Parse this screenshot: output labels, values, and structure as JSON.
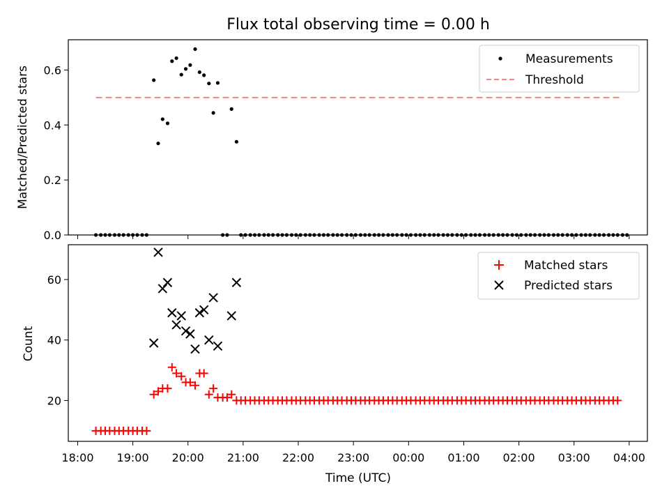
{
  "title": "Flux total observing time = 0.00 h",
  "xlabel": "Time (UTC)",
  "chart_data": [
    {
      "type": "scatter",
      "ylabel": "Matched/Predicted stars",
      "ylim": [
        0,
        0.71
      ],
      "yticks": [
        0.0,
        0.2,
        0.4,
        0.6
      ],
      "ytick_labels": [
        "0.0",
        "0.2",
        "0.4",
        "0.6"
      ],
      "x_unit": "hours since 18:00 UTC",
      "xlim": [
        17.83,
        28.33
      ],
      "legend_position": "top-right",
      "series": [
        {
          "name": "Measurements",
          "marker": "dot",
          "color": "#000000",
          "points": [
            [
              18.33,
              0
            ],
            [
              18.42,
              0
            ],
            [
              18.5,
              0
            ],
            [
              18.58,
              0
            ],
            [
              18.67,
              0
            ],
            [
              18.75,
              0
            ],
            [
              18.83,
              0
            ],
            [
              18.92,
              0
            ],
            [
              19.0,
              0
            ],
            [
              19.08,
              0
            ],
            [
              19.17,
              0
            ],
            [
              19.25,
              0
            ],
            [
              19.38,
              0.563
            ],
            [
              19.46,
              0.333
            ],
            [
              19.54,
              0.421
            ],
            [
              19.63,
              0.406
            ],
            [
              19.71,
              0.632
            ],
            [
              19.79,
              0.643
            ],
            [
              19.88,
              0.583
            ],
            [
              19.96,
              0.604
            ],
            [
              20.04,
              0.618
            ],
            [
              20.13,
              0.676
            ],
            [
              20.21,
              0.592
            ],
            [
              20.29,
              0.581
            ],
            [
              20.38,
              0.551
            ],
            [
              20.46,
              0.444
            ],
            [
              20.54,
              0.553
            ],
            [
              20.63,
              0
            ],
            [
              20.71,
              0
            ],
            [
              20.79,
              0.458
            ],
            [
              20.88,
              0.339
            ],
            [
              20.96,
              0
            ],
            [
              21.04,
              0
            ],
            [
              21.13,
              0
            ],
            [
              21.21,
              0
            ],
            [
              21.29,
              0
            ],
            [
              21.38,
              0
            ],
            [
              21.46,
              0
            ],
            [
              21.54,
              0
            ],
            [
              21.63,
              0
            ],
            [
              21.71,
              0
            ],
            [
              21.79,
              0
            ],
            [
              21.88,
              0
            ],
            [
              21.96,
              0
            ],
            [
              22.04,
              0
            ],
            [
              22.13,
              0
            ],
            [
              22.21,
              0
            ],
            [
              22.29,
              0
            ],
            [
              22.38,
              0
            ],
            [
              22.46,
              0
            ],
            [
              22.54,
              0
            ],
            [
              22.63,
              0
            ],
            [
              22.71,
              0
            ],
            [
              22.79,
              0
            ],
            [
              22.88,
              0
            ],
            [
              22.96,
              0
            ],
            [
              23.04,
              0
            ],
            [
              23.13,
              0
            ],
            [
              23.21,
              0
            ],
            [
              23.29,
              0
            ],
            [
              23.38,
              0
            ],
            [
              23.46,
              0
            ],
            [
              23.54,
              0
            ],
            [
              23.63,
              0
            ],
            [
              23.71,
              0
            ],
            [
              23.79,
              0
            ],
            [
              23.88,
              0
            ],
            [
              23.96,
              0
            ],
            [
              24.04,
              0
            ],
            [
              24.13,
              0
            ],
            [
              24.21,
              0
            ],
            [
              24.29,
              0
            ],
            [
              24.38,
              0
            ],
            [
              24.46,
              0
            ],
            [
              24.54,
              0
            ],
            [
              24.63,
              0
            ],
            [
              24.71,
              0
            ],
            [
              24.79,
              0
            ],
            [
              24.88,
              0
            ],
            [
              24.96,
              0
            ],
            [
              25.04,
              0
            ],
            [
              25.13,
              0
            ],
            [
              25.21,
              0
            ],
            [
              25.29,
              0
            ],
            [
              25.38,
              0
            ],
            [
              25.46,
              0
            ],
            [
              25.54,
              0
            ],
            [
              25.63,
              0
            ],
            [
              25.71,
              0
            ],
            [
              25.79,
              0
            ],
            [
              25.88,
              0
            ],
            [
              25.96,
              0
            ],
            [
              26.04,
              0
            ],
            [
              26.13,
              0
            ],
            [
              26.21,
              0
            ],
            [
              26.29,
              0
            ],
            [
              26.38,
              0
            ],
            [
              26.46,
              0
            ],
            [
              26.54,
              0
            ],
            [
              26.63,
              0
            ],
            [
              26.71,
              0
            ],
            [
              26.79,
              0
            ],
            [
              26.88,
              0
            ],
            [
              26.96,
              0
            ],
            [
              27.04,
              0
            ],
            [
              27.13,
              0
            ],
            [
              27.21,
              0
            ],
            [
              27.29,
              0
            ],
            [
              27.38,
              0
            ],
            [
              27.46,
              0
            ],
            [
              27.54,
              0
            ],
            [
              27.63,
              0
            ],
            [
              27.71,
              0
            ],
            [
              27.79,
              0
            ],
            [
              27.88,
              0
            ],
            [
              27.96,
              0
            ]
          ]
        },
        {
          "name": "Threshold",
          "marker": "dashed-line",
          "color": "#ff8080",
          "points": [
            [
              18.33,
              0.5
            ],
            [
              27.83,
              0.5
            ]
          ]
        }
      ]
    },
    {
      "type": "scatter",
      "ylabel": "Count",
      "ylim": [
        6.5,
        71.5
      ],
      "yticks": [
        20,
        40,
        60
      ],
      "ytick_labels": [
        "20",
        "40",
        "60"
      ],
      "x_unit": "hours since 18:00 UTC",
      "xlim": [
        17.83,
        28.33
      ],
      "xticks": [
        18,
        19,
        20,
        21,
        22,
        23,
        24,
        25,
        26,
        27,
        28
      ],
      "xtick_labels": [
        "18:00",
        "19:00",
        "20:00",
        "21:00",
        "22:00",
        "23:00",
        "00:00",
        "01:00",
        "02:00",
        "03:00",
        "04:00"
      ],
      "legend_position": "top-right",
      "series": [
        {
          "name": "Matched stars",
          "marker": "plus",
          "color": "#ff0000",
          "points": [
            [
              18.33,
              10
            ],
            [
              18.42,
              10
            ],
            [
              18.5,
              10
            ],
            [
              18.58,
              10
            ],
            [
              18.67,
              10
            ],
            [
              18.75,
              10
            ],
            [
              18.83,
              10
            ],
            [
              18.92,
              10
            ],
            [
              19.0,
              10
            ],
            [
              19.08,
              10
            ],
            [
              19.17,
              10
            ],
            [
              19.25,
              10
            ],
            [
              19.38,
              22
            ],
            [
              19.46,
              23
            ],
            [
              19.54,
              24
            ],
            [
              19.63,
              24
            ],
            [
              19.71,
              31
            ],
            [
              19.79,
              29
            ],
            [
              19.88,
              28
            ],
            [
              19.96,
              26
            ],
            [
              20.04,
              26
            ],
            [
              20.13,
              25
            ],
            [
              20.21,
              29
            ],
            [
              20.29,
              29
            ],
            [
              20.38,
              22
            ],
            [
              20.46,
              24
            ],
            [
              20.54,
              21
            ],
            [
              20.63,
              21
            ],
            [
              20.71,
              21
            ],
            [
              20.79,
              22
            ],
            [
              20.88,
              20
            ],
            [
              20.96,
              20
            ],
            [
              21.04,
              20
            ],
            [
              21.13,
              20
            ],
            [
              21.21,
              20
            ],
            [
              21.29,
              20
            ],
            [
              21.38,
              20
            ],
            [
              21.46,
              20
            ],
            [
              21.54,
              20
            ],
            [
              21.63,
              20
            ],
            [
              21.71,
              20
            ],
            [
              21.79,
              20
            ],
            [
              21.88,
              20
            ],
            [
              21.96,
              20
            ],
            [
              22.04,
              20
            ],
            [
              22.13,
              20
            ],
            [
              22.21,
              20
            ],
            [
              22.29,
              20
            ],
            [
              22.38,
              20
            ],
            [
              22.46,
              20
            ],
            [
              22.54,
              20
            ],
            [
              22.63,
              20
            ],
            [
              22.71,
              20
            ],
            [
              22.79,
              20
            ],
            [
              22.88,
              20
            ],
            [
              22.96,
              20
            ],
            [
              23.04,
              20
            ],
            [
              23.13,
              20
            ],
            [
              23.21,
              20
            ],
            [
              23.29,
              20
            ],
            [
              23.38,
              20
            ],
            [
              23.46,
              20
            ],
            [
              23.54,
              20
            ],
            [
              23.63,
              20
            ],
            [
              23.71,
              20
            ],
            [
              23.79,
              20
            ],
            [
              23.88,
              20
            ],
            [
              23.96,
              20
            ],
            [
              24.04,
              20
            ],
            [
              24.13,
              20
            ],
            [
              24.21,
              20
            ],
            [
              24.29,
              20
            ],
            [
              24.38,
              20
            ],
            [
              24.46,
              20
            ],
            [
              24.54,
              20
            ],
            [
              24.63,
              20
            ],
            [
              24.71,
              20
            ],
            [
              24.79,
              20
            ],
            [
              24.88,
              20
            ],
            [
              24.96,
              20
            ],
            [
              25.04,
              20
            ],
            [
              25.13,
              20
            ],
            [
              25.21,
              20
            ],
            [
              25.29,
              20
            ],
            [
              25.38,
              20
            ],
            [
              25.46,
              20
            ],
            [
              25.54,
              20
            ],
            [
              25.63,
              20
            ],
            [
              25.71,
              20
            ],
            [
              25.79,
              20
            ],
            [
              25.88,
              20
            ],
            [
              25.96,
              20
            ],
            [
              26.04,
              20
            ],
            [
              26.13,
              20
            ],
            [
              26.21,
              20
            ],
            [
              26.29,
              20
            ],
            [
              26.38,
              20
            ],
            [
              26.46,
              20
            ],
            [
              26.54,
              20
            ],
            [
              26.63,
              20
            ],
            [
              26.71,
              20
            ],
            [
              26.79,
              20
            ],
            [
              26.88,
              20
            ],
            [
              26.96,
              20
            ],
            [
              27.04,
              20
            ],
            [
              27.13,
              20
            ],
            [
              27.21,
              20
            ],
            [
              27.29,
              20
            ],
            [
              27.38,
              20
            ],
            [
              27.46,
              20
            ],
            [
              27.54,
              20
            ],
            [
              27.63,
              20
            ],
            [
              27.71,
              20
            ],
            [
              27.79,
              20
            ]
          ]
        },
        {
          "name": "Predicted stars",
          "marker": "x",
          "color": "#000000",
          "points": [
            [
              19.38,
              39
            ],
            [
              19.46,
              69
            ],
            [
              19.54,
              57
            ],
            [
              19.63,
              59
            ],
            [
              19.71,
              49
            ],
            [
              19.79,
              45
            ],
            [
              19.88,
              48
            ],
            [
              19.96,
              43
            ],
            [
              20.04,
              42
            ],
            [
              20.13,
              37
            ],
            [
              20.21,
              49
            ],
            [
              20.29,
              50
            ],
            [
              20.38,
              40
            ],
            [
              20.46,
              54
            ],
            [
              20.54,
              38
            ],
            [
              20.79,
              48
            ],
            [
              20.88,
              59
            ]
          ]
        }
      ]
    }
  ]
}
